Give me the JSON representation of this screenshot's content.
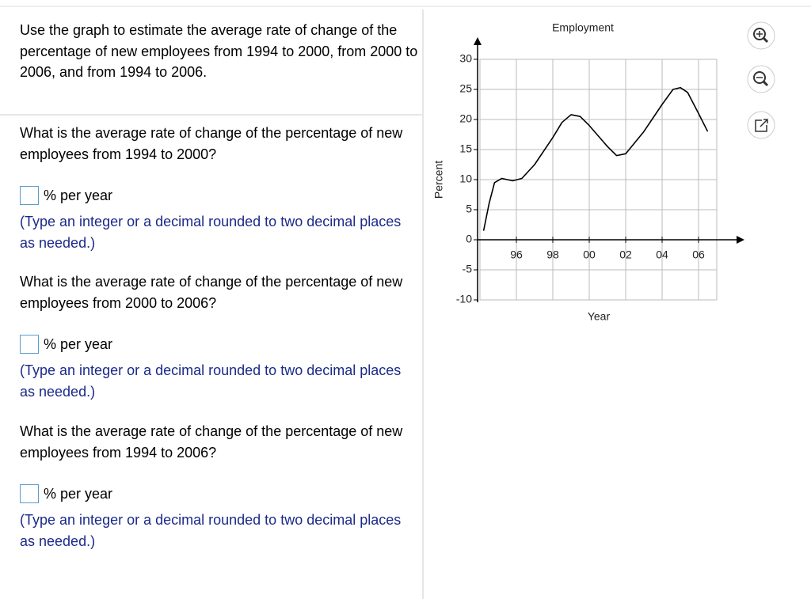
{
  "question": {
    "intro": "Use the graph to estimate the average rate of change of the percentage of new employees from 1994 to 2000, from 2000 to 2006, and from 1994 to 2006.",
    "parts": [
      {
        "prompt": "What is the average rate of change of the percentage of new employees from 1994 to 2000?",
        "unit": "% per year",
        "hint": "(Type an integer or a decimal rounded to two decimal places as needed.)"
      },
      {
        "prompt": "What is the average rate of change of the percentage of new employees from 2000 to 2006?",
        "unit": "% per year",
        "hint": "(Type an integer or a decimal rounded to two decimal places as needed.)"
      },
      {
        "prompt": "What is the average rate of change of the percentage of new employees from 1994 to 2006?",
        "unit": "% per year",
        "hint": "(Type an integer or a decimal rounded to two decimal places as needed.)"
      }
    ]
  },
  "chart_data": {
    "type": "line",
    "title": "Employment",
    "x_label": "Year",
    "y_label": "Percent",
    "x": [
      1994.2,
      1994.5,
      1994.8,
      1995.2,
      1995.8,
      1996.3,
      1997,
      1998,
      1998.5,
      1999,
      1999.5,
      2000,
      2001,
      2001.5,
      2002,
      2003,
      2004,
      2004.6,
      2005,
      2005.4,
      2006,
      2006.5
    ],
    "values": [
      1.5,
      6,
      9.5,
      10.2,
      9.8,
      10.2,
      12.5,
      17,
      19.5,
      20.8,
      20.5,
      19,
      15.5,
      14,
      14.3,
      18,
      22.5,
      25,
      25.3,
      24.5,
      21,
      18
    ],
    "color": "#000000",
    "xlim": [
      1994,
      2007
    ],
    "ylim": [
      -10,
      30
    ],
    "xticks": [
      {
        "value": 1996,
        "label": "96"
      },
      {
        "value": 1998,
        "label": "98"
      },
      {
        "value": 2000,
        "label": "00"
      },
      {
        "value": 2002,
        "label": "02"
      },
      {
        "value": 2004,
        "label": "04"
      },
      {
        "value": 2006,
        "label": "06"
      }
    ],
    "yticks": [
      -10,
      -5,
      0,
      5,
      10,
      15,
      20,
      25,
      30
    ],
    "grid": true
  }
}
